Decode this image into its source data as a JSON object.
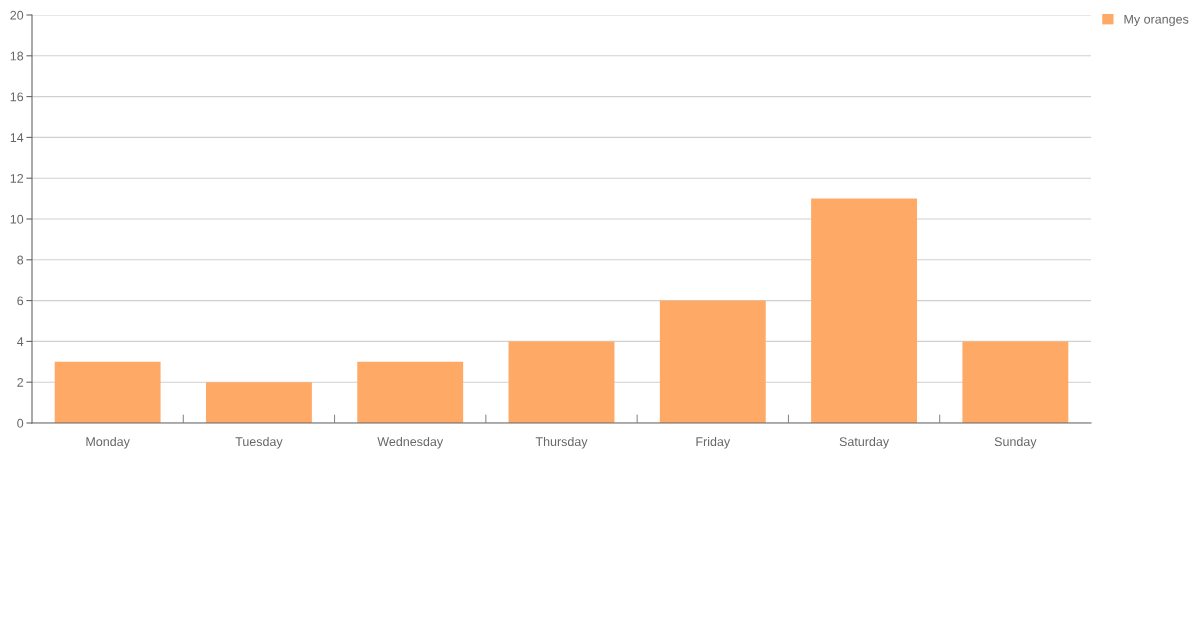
{
  "chart_data": {
    "type": "bar",
    "categories": [
      "Monday",
      "Tuesday",
      "Wednesday",
      "Thursday",
      "Friday",
      "Saturday",
      "Sunday"
    ],
    "series": [
      {
        "name": "My oranges",
        "color": "#ffa966",
        "values": [
          3,
          2,
          3,
          4,
          6,
          11,
          4
        ]
      }
    ],
    "ylim": [
      0,
      20
    ],
    "yticks": [
      0,
      2,
      4,
      6,
      8,
      10,
      12,
      14,
      16,
      18,
      20
    ],
    "grid": "y",
    "legend": "top right"
  }
}
